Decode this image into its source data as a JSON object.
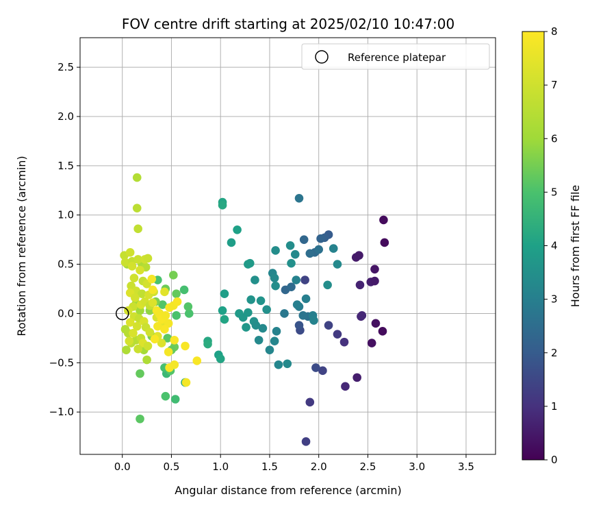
{
  "chart_data": {
    "type": "scatter",
    "title": "FOV centre drift starting at 2025/02/10 10:47:00",
    "xlabel": "Angular distance from reference (arcmin)",
    "ylabel": "Rotation from reference (arcmin)",
    "xlim": [
      -0.43,
      3.8
    ],
    "ylim": [
      -1.43,
      2.8
    ],
    "xticks": [
      0.0,
      0.5,
      1.0,
      1.5,
      2.0,
      2.5,
      3.0,
      3.5
    ],
    "xtick_labels": [
      "0.0",
      "0.5",
      "1.0",
      "1.5",
      "2.0",
      "2.5",
      "3.0",
      "3.5"
    ],
    "yticks": [
      -1.0,
      -0.5,
      0.0,
      0.5,
      1.0,
      1.5,
      2.0,
      2.5
    ],
    "ytick_labels": [
      "−1.0",
      "−0.5",
      "0.0",
      "0.5",
      "1.0",
      "1.5",
      "2.0",
      "2.5"
    ],
    "grid": true,
    "legend": {
      "position": "top-right",
      "entries": [
        "Reference platepar"
      ]
    },
    "reference_point": {
      "x": 0.0,
      "y": 0.0
    },
    "colorbar": {
      "label": "Hours from first FF file",
      "min": 0,
      "max": 8,
      "ticks": [
        0,
        1,
        2,
        3,
        4,
        5,
        6,
        7,
        8
      ],
      "tick_labels": [
        "0",
        "1",
        "2",
        "3",
        "4",
        "5",
        "6",
        "7",
        "8"
      ],
      "colormap": "viridis"
    },
    "points": [
      {
        "x": 2.66,
        "y": 0.95,
        "c": 0.2
      },
      {
        "x": 2.67,
        "y": 0.72,
        "c": 0.2
      },
      {
        "x": 2.41,
        "y": 0.59,
        "c": 0.5
      },
      {
        "x": 2.38,
        "y": 0.57,
        "c": 0.5
      },
      {
        "x": 2.57,
        "y": 0.45,
        "c": 0.4
      },
      {
        "x": 2.53,
        "y": 0.32,
        "c": 0.6
      },
      {
        "x": 2.57,
        "y": 0.33,
        "c": 0.5
      },
      {
        "x": 2.42,
        "y": 0.29,
        "c": 0.7
      },
      {
        "x": 2.44,
        "y": -0.02,
        "c": 0.8
      },
      {
        "x": 2.43,
        "y": -0.03,
        "c": 0.8
      },
      {
        "x": 2.58,
        "y": -0.1,
        "c": 0.3
      },
      {
        "x": 2.65,
        "y": -0.18,
        "c": 0.2
      },
      {
        "x": 2.54,
        "y": -0.3,
        "c": 0.3
      },
      {
        "x": 2.39,
        "y": -0.65,
        "c": 0.6
      },
      {
        "x": 2.27,
        "y": -0.74,
        "c": 0.8
      },
      {
        "x": 2.26,
        "y": -0.29,
        "c": 1.0
      },
      {
        "x": 2.19,
        "y": -0.21,
        "c": 1.2
      },
      {
        "x": 2.1,
        "y": -0.12,
        "c": 1.4
      },
      {
        "x": 2.04,
        "y": -0.58,
        "c": 1.4
      },
      {
        "x": 1.97,
        "y": -0.55,
        "c": 1.6
      },
      {
        "x": 1.91,
        "y": -0.9,
        "c": 1.2
      },
      {
        "x": 1.87,
        "y": -1.3,
        "c": 1.3
      },
      {
        "x": 1.86,
        "y": 0.34,
        "c": 1.4
      },
      {
        "x": 1.81,
        "y": -0.17,
        "c": 1.6
      },
      {
        "x": 1.8,
        "y": -0.12,
        "c": 1.8
      },
      {
        "x": 2.1,
        "y": 0.8,
        "c": 2.0
      },
      {
        "x": 2.06,
        "y": 0.77,
        "c": 2.1
      },
      {
        "x": 2.02,
        "y": 0.76,
        "c": 2.2
      },
      {
        "x": 1.85,
        "y": 0.75,
        "c": 2.3
      },
      {
        "x": 1.66,
        "y": 0.24,
        "c": 2.3
      },
      {
        "x": 1.72,
        "y": 0.27,
        "c": 2.4
      },
      {
        "x": 1.96,
        "y": 0.62,
        "c": 2.4
      },
      {
        "x": 1.91,
        "y": 0.61,
        "c": 2.5
      },
      {
        "x": 1.8,
        "y": 1.17,
        "c": 2.7
      },
      {
        "x": 2.0,
        "y": 0.65,
        "c": 2.6
      },
      {
        "x": 1.89,
        "y": -0.03,
        "c": 2.6
      },
      {
        "x": 1.84,
        "y": -0.02,
        "c": 2.7
      },
      {
        "x": 1.65,
        "y": 0.0,
        "c": 2.8
      },
      {
        "x": 1.8,
        "y": 0.07,
        "c": 2.9
      },
      {
        "x": 1.78,
        "y": 0.09,
        "c": 3.0
      },
      {
        "x": 1.94,
        "y": -0.02,
        "c": 3.0
      },
      {
        "x": 1.95,
        "y": -0.07,
        "c": 3.1
      },
      {
        "x": 1.87,
        "y": 0.15,
        "c": 3.0
      },
      {
        "x": 2.15,
        "y": 0.66,
        "c": 3.1
      },
      {
        "x": 2.19,
        "y": 0.5,
        "c": 3.3
      },
      {
        "x": 2.09,
        "y": 0.29,
        "c": 3.4
      },
      {
        "x": 1.76,
        "y": 0.6,
        "c": 3.3
      },
      {
        "x": 1.77,
        "y": 0.34,
        "c": 3.1
      },
      {
        "x": 1.71,
        "y": 0.69,
        "c": 3.4
      },
      {
        "x": 1.56,
        "y": 0.64,
        "c": 3.4
      },
      {
        "x": 1.72,
        "y": 0.51,
        "c": 3.5
      },
      {
        "x": 1.53,
        "y": 0.41,
        "c": 3.2
      },
      {
        "x": 1.55,
        "y": 0.36,
        "c": 3.3
      },
      {
        "x": 1.56,
        "y": 0.28,
        "c": 3.4
      },
      {
        "x": 1.35,
        "y": 0.34,
        "c": 3.5
      },
      {
        "x": 1.41,
        "y": 0.13,
        "c": 3.6
      },
      {
        "x": 1.47,
        "y": 0.04,
        "c": 3.5
      },
      {
        "x": 1.31,
        "y": 0.14,
        "c": 3.6
      },
      {
        "x": 1.28,
        "y": 0.01,
        "c": 3.7
      },
      {
        "x": 1.19,
        "y": 0.0,
        "c": 3.8
      },
      {
        "x": 1.23,
        "y": -0.04,
        "c": 3.7
      },
      {
        "x": 1.34,
        "y": -0.08,
        "c": 3.5
      },
      {
        "x": 1.36,
        "y": -0.12,
        "c": 3.4
      },
      {
        "x": 1.43,
        "y": -0.15,
        "c": 3.3
      },
      {
        "x": 1.26,
        "y": -0.14,
        "c": 3.7
      },
      {
        "x": 1.39,
        "y": -0.27,
        "c": 3.3
      },
      {
        "x": 1.55,
        "y": -0.28,
        "c": 3.2
      },
      {
        "x": 1.57,
        "y": -0.18,
        "c": 3.1
      },
      {
        "x": 1.5,
        "y": -0.37,
        "c": 3.2
      },
      {
        "x": 1.59,
        "y": -0.52,
        "c": 3.2
      },
      {
        "x": 1.68,
        "y": -0.51,
        "c": 3.3
      },
      {
        "x": 1.28,
        "y": 0.5,
        "c": 3.8
      },
      {
        "x": 1.3,
        "y": 0.51,
        "c": 3.8
      },
      {
        "x": 1.17,
        "y": 0.85,
        "c": 4.0
      },
      {
        "x": 1.11,
        "y": 0.72,
        "c": 3.9
      },
      {
        "x": 1.02,
        "y": 1.13,
        "c": 4.1
      },
      {
        "x": 1.02,
        "y": 1.1,
        "c": 4.2
      },
      {
        "x": 1.04,
        "y": 0.2,
        "c": 3.9
      },
      {
        "x": 1.02,
        "y": 0.03,
        "c": 4.0
      },
      {
        "x": 1.04,
        "y": -0.06,
        "c": 4.1
      },
      {
        "x": 0.98,
        "y": -0.42,
        "c": 4.0
      },
      {
        "x": 1.0,
        "y": -0.46,
        "c": 4.1
      },
      {
        "x": 0.87,
        "y": -0.28,
        "c": 4.2
      },
      {
        "x": 0.87,
        "y": -0.31,
        "c": 4.3
      },
      {
        "x": 0.64,
        "y": -0.7,
        "c": 4.1
      },
      {
        "x": 0.54,
        "y": -0.87,
        "c": 4.8
      },
      {
        "x": 0.44,
        "y": -0.84,
        "c": 5.0
      },
      {
        "x": 0.45,
        "y": -0.61,
        "c": 4.7
      },
      {
        "x": 0.43,
        "y": -0.55,
        "c": 4.9
      },
      {
        "x": 0.49,
        "y": -0.58,
        "c": 5.1
      },
      {
        "x": 0.18,
        "y": -1.07,
        "c": 5.2
      },
      {
        "x": 0.18,
        "y": -0.61,
        "c": 5.3
      },
      {
        "x": 0.68,
        "y": 0.0,
        "c": 5.0
      },
      {
        "x": 0.67,
        "y": 0.07,
        "c": 5.1
      },
      {
        "x": 0.63,
        "y": 0.24,
        "c": 4.9
      },
      {
        "x": 0.55,
        "y": 0.2,
        "c": 5.3
      },
      {
        "x": 0.52,
        "y": 0.39,
        "c": 5.5
      },
      {
        "x": 0.55,
        "y": -0.02,
        "c": 5.0
      },
      {
        "x": 0.53,
        "y": -0.34,
        "c": 5.4
      },
      {
        "x": 0.5,
        "y": -0.37,
        "c": 5.3
      },
      {
        "x": 0.46,
        "y": -0.25,
        "c": 5.2
      },
      {
        "x": 0.41,
        "y": 0.09,
        "c": 5.1
      },
      {
        "x": 0.44,
        "y": 0.25,
        "c": 5.4
      },
      {
        "x": 0.36,
        "y": 0.34,
        "c": 5.0
      },
      {
        "x": 0.34,
        "y": 0.12,
        "c": 5.6
      },
      {
        "x": 0.3,
        "y": -0.23,
        "c": 5.6
      },
      {
        "x": 0.28,
        "y": 0.03,
        "c": 5.8
      },
      {
        "x": 0.18,
        "y": 0.03,
        "c": 6.0
      },
      {
        "x": 0.14,
        "y": 0.1,
        "c": 6.0
      },
      {
        "x": 0.22,
        "y": -0.37,
        "c": 6.1
      },
      {
        "x": 0.25,
        "y": -0.47,
        "c": 6.3
      },
      {
        "x": 0.15,
        "y": 1.38,
        "c": 6.4
      },
      {
        "x": 0.15,
        "y": 1.07,
        "c": 6.6
      },
      {
        "x": 0.16,
        "y": 0.86,
        "c": 6.7
      },
      {
        "x": 0.2,
        "y": 0.5,
        "c": 6.3
      },
      {
        "x": 0.24,
        "y": 0.47,
        "c": 6.5
      },
      {
        "x": 0.05,
        "y": 0.5,
        "c": 6.2
      },
      {
        "x": 0.03,
        "y": -0.16,
        "c": 6.4
      },
      {
        "x": 0.06,
        "y": -0.2,
        "c": 6.5
      },
      {
        "x": 0.04,
        "y": -0.37,
        "c": 6.3
      },
      {
        "x": 0.09,
        "y": -0.3,
        "c": 6.6
      },
      {
        "x": 0.14,
        "y": -0.27,
        "c": 6.5
      },
      {
        "x": 0.02,
        "y": 0.59,
        "c": 6.8
      },
      {
        "x": 0.08,
        "y": 0.62,
        "c": 7.0
      },
      {
        "x": 0.03,
        "y": 0.52,
        "c": 6.9
      },
      {
        "x": 0.1,
        "y": 0.53,
        "c": 6.8
      },
      {
        "x": 0.16,
        "y": 0.55,
        "c": 6.9
      },
      {
        "x": 0.23,
        "y": 0.55,
        "c": 7.0
      },
      {
        "x": 0.26,
        "y": 0.56,
        "c": 6.9
      },
      {
        "x": 0.1,
        "y": 0.48,
        "c": 7.1
      },
      {
        "x": 0.18,
        "y": 0.44,
        "c": 7.2
      },
      {
        "x": 0.12,
        "y": 0.36,
        "c": 7.0
      },
      {
        "x": 0.21,
        "y": 0.33,
        "c": 6.8
      },
      {
        "x": 0.25,
        "y": 0.3,
        "c": 7.1
      },
      {
        "x": 0.09,
        "y": 0.28,
        "c": 6.9
      },
      {
        "x": 0.14,
        "y": 0.23,
        "c": 7.0
      },
      {
        "x": 0.2,
        "y": 0.2,
        "c": 6.7
      },
      {
        "x": 0.27,
        "y": 0.19,
        "c": 7.2
      },
      {
        "x": 0.08,
        "y": 0.21,
        "c": 7.3
      },
      {
        "x": 0.13,
        "y": 0.16,
        "c": 7.1
      },
      {
        "x": 0.11,
        "y": 0.07,
        "c": 6.9
      },
      {
        "x": 0.19,
        "y": 0.09,
        "c": 7.2
      },
      {
        "x": 0.23,
        "y": 0.12,
        "c": 7.1
      },
      {
        "x": 0.28,
        "y": 0.08,
        "c": 6.8
      },
      {
        "x": 0.32,
        "y": 0.22,
        "c": 7.0
      },
      {
        "x": 0.06,
        "y": 0.03,
        "c": 7.1
      },
      {
        "x": 0.12,
        "y": -0.03,
        "c": 7.0
      },
      {
        "x": 0.17,
        "y": -0.05,
        "c": 6.8
      },
      {
        "x": 0.22,
        "y": -0.08,
        "c": 7.2
      },
      {
        "x": 0.08,
        "y": -0.09,
        "c": 7.3
      },
      {
        "x": 0.15,
        "y": -0.13,
        "c": 7.1
      },
      {
        "x": 0.24,
        "y": -0.14,
        "c": 6.9
      },
      {
        "x": 0.28,
        "y": -0.19,
        "c": 7.0
      },
      {
        "x": 0.11,
        "y": -0.2,
        "c": 7.2
      },
      {
        "x": 0.19,
        "y": -0.25,
        "c": 6.8
      },
      {
        "x": 0.07,
        "y": -0.28,
        "c": 7.1
      },
      {
        "x": 0.21,
        "y": -0.3,
        "c": 7.3
      },
      {
        "x": 0.26,
        "y": -0.33,
        "c": 7.0
      },
      {
        "x": 0.16,
        "y": -0.36,
        "c": 6.9
      },
      {
        "x": 0.35,
        "y": -0.04,
        "c": 7.2
      },
      {
        "x": 0.38,
        "y": 0.0,
        "c": 7.4
      },
      {
        "x": 0.31,
        "y": 0.11,
        "c": 7.3
      },
      {
        "x": 0.41,
        "y": -0.09,
        "c": 7.5
      },
      {
        "x": 0.43,
        "y": 0.22,
        "c": 7.4
      },
      {
        "x": 0.36,
        "y": -0.23,
        "c": 7.4
      },
      {
        "x": 0.4,
        "y": -0.3,
        "c": 7.3
      },
      {
        "x": 0.3,
        "y": 0.35,
        "c": 7.8
      },
      {
        "x": 0.31,
        "y": 0.24,
        "c": 7.8
      },
      {
        "x": 0.35,
        "y": 0.03,
        "c": 7.9
      },
      {
        "x": 0.38,
        "y": -0.01,
        "c": 7.8
      },
      {
        "x": 0.4,
        "y": -0.06,
        "c": 7.9
      },
      {
        "x": 0.44,
        "y": -0.02,
        "c": 7.8
      },
      {
        "x": 0.48,
        "y": 0.06,
        "c": 7.9
      },
      {
        "x": 0.52,
        "y": 0.08,
        "c": 7.8
      },
      {
        "x": 0.56,
        "y": 0.12,
        "c": 7.9
      },
      {
        "x": 0.47,
        "y": -0.1,
        "c": 7.8
      },
      {
        "x": 0.43,
        "y": -0.16,
        "c": 7.9
      },
      {
        "x": 0.36,
        "y": -0.13,
        "c": 7.8
      },
      {
        "x": 0.33,
        "y": -0.26,
        "c": 7.9
      },
      {
        "x": 0.47,
        "y": -0.39,
        "c": 7.8
      },
      {
        "x": 0.48,
        "y": -0.55,
        "c": 7.9
      },
      {
        "x": 0.53,
        "y": -0.52,
        "c": 7.8
      },
      {
        "x": 0.53,
        "y": -0.27,
        "c": 7.9
      },
      {
        "x": 0.64,
        "y": -0.33,
        "c": 7.9
      },
      {
        "x": 0.65,
        "y": -0.7,
        "c": 7.8
      },
      {
        "x": 0.76,
        "y": -0.48,
        "c": 7.9
      }
    ]
  }
}
